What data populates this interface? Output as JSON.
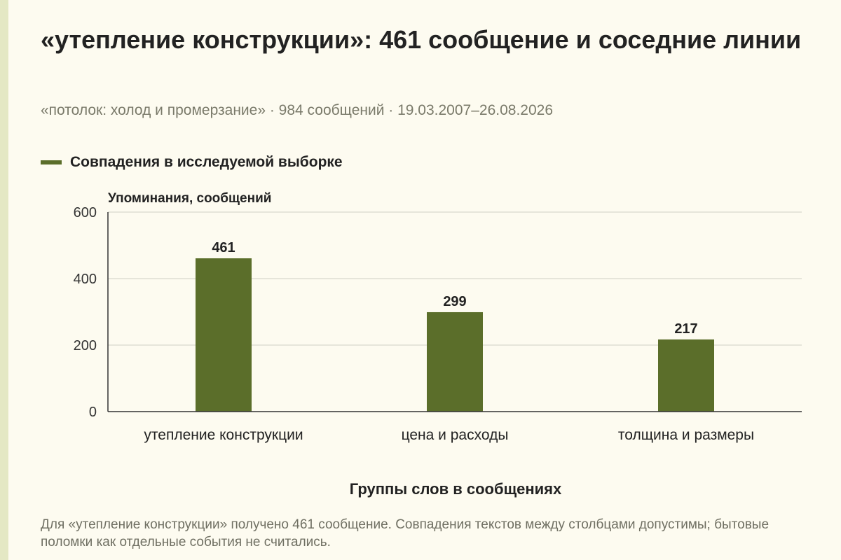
{
  "header": {
    "title": "«утепление конструкции»: 461 сообщение и соседние линии",
    "subtitle": "«потолок: холод и промерзание» · 984 сообщений · 19.03.2007–26.08.2026"
  },
  "footnote": "Для «утепление конструкции» получено 461 сообщение. Совпадения текстов между столбцами допустимы; бытовые поломки как отдельные события не считались.",
  "colors": {
    "bar": "#5b6e2a",
    "grid": "#cfcfc4",
    "axis": "#333333"
  },
  "chart_data": {
    "type": "bar",
    "title": "«утепление конструкции»: 461 сообщение и соседние линии",
    "subtitle": "«потолок: холод и промерзание» · 984 сообщений · 19.03.2007–26.08.2026",
    "xlabel": "Группы слов в сообщениях",
    "ylabel": "Упоминания, сообщений",
    "ylim": [
      0,
      600
    ],
    "yticks": [
      0,
      200,
      400,
      600
    ],
    "grid": true,
    "legend_position": "top-left",
    "categories": [
      "утепление конструкции",
      "цена и расходы",
      "толщина и размеры"
    ],
    "series": [
      {
        "name": "Совпадения в исследуемой выборке",
        "values": [
          461,
          299,
          217
        ],
        "color": "#5b6e2a"
      }
    ]
  }
}
